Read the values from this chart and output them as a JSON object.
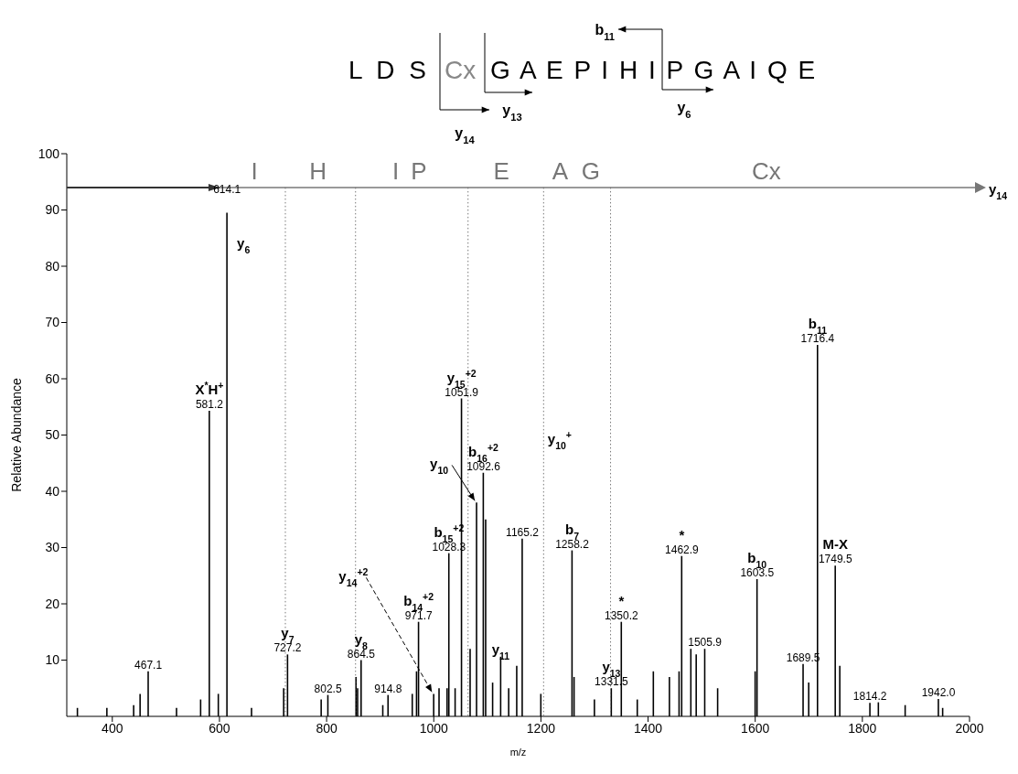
{
  "chart_data": {
    "type": "bar",
    "xlabel": "m/z",
    "ylabel": "Relative Abundance",
    "color": "#000000",
    "x": [
      335,
      390,
      440,
      452,
      467.1,
      520,
      565,
      581.2,
      598,
      614.1,
      660,
      720,
      727.2,
      790,
      802.5,
      855,
      858,
      864.5,
      905,
      914.8,
      960,
      968,
      971.7,
      1000,
      1010,
      1025,
      1028.3,
      1040,
      1051.9,
      1068,
      1080,
      1092.6,
      1097,
      1110,
      1125,
      1140,
      1155,
      1165.2,
      1200,
      1258.2,
      1262,
      1300,
      1331.5,
      1350.2,
      1380,
      1410,
      1440,
      1458,
      1462.9,
      1480,
      1490,
      1505.9,
      1530,
      1600,
      1603.5,
      1689.5,
      1700,
      1716.4,
      1749.5,
      1758,
      1814.2,
      1830,
      1880,
      1942,
      1950
    ],
    "values": [
      1.5,
      1.5,
      2,
      4,
      8,
      1.5,
      3,
      54.3,
      4,
      89.5,
      1.5,
      5,
      11,
      3,
      3.8,
      7,
      5,
      10,
      2,
      3.8,
      4,
      8,
      16.8,
      4,
      5,
      5,
      29,
      5,
      56.5,
      12,
      38,
      43.3,
      35,
      6,
      10.6,
      5,
      9,
      31.6,
      4,
      29.5,
      7,
      3,
      5,
      16.8,
      3,
      8,
      7,
      8,
      28.5,
      12,
      11,
      12,
      5,
      8,
      24.4,
      9.3,
      6,
      66,
      26.8,
      9,
      2.4,
      2.5,
      2,
      3.1,
      1.5
    ],
    "xlim": [
      315,
      2000
    ],
    "xticks": [
      400,
      600,
      800,
      1000,
      1200,
      1400,
      1600,
      1800,
      2000
    ],
    "ylim": [
      0,
      100
    ],
    "yticks": [
      10,
      20,
      30,
      40,
      50,
      60,
      70,
      80,
      90,
      100
    ],
    "grid": false,
    "legend": false,
    "ref_lines": [
      {
        "axis": "y",
        "value": 94,
        "label": "y$_{14}$",
        "color": "#777777"
      },
      {
        "axis": "x",
        "value": 723,
        "color": "#777777",
        "line_style": "dotted"
      },
      {
        "axis": "x",
        "value": 854,
        "color": "#777777",
        "line_style": "dotted"
      },
      {
        "axis": "x",
        "value": 1064,
        "color": "#777777",
        "line_style": "dotted"
      },
      {
        "axis": "x",
        "value": 1205,
        "color": "#777777",
        "line_style": "dotted"
      },
      {
        "axis": "x",
        "value": 1330,
        "color": "#777777",
        "line_style": "dotted"
      }
    ],
    "annotations": [
      "L D S",
      "Cx",
      "G A E P I H I P G A I Q E",
      "b$_{11}$",
      "y$_{14}$",
      "y$_{13}$",
      "y$_{6}$",
      "I",
      "H",
      "I",
      "P",
      "E",
      "A",
      "G",
      "Cx",
      "y$_{10}$$^{+}$",
      {
        "text": "467.1",
        "x": 467.1,
        "y": 8
      },
      {
        "text": "X$^{*}$H$^{+}$",
        "x": 581.2,
        "y": 54.3
      },
      {
        "text": "581.2",
        "x": 581.2,
        "y": 54.3
      },
      {
        "text": "614.1",
        "x": 614.1,
        "y": 89.5
      },
      {
        "text": "y$_{6}$",
        "x": 614.1,
        "y": 89.5
      },
      {
        "text": "y$_{7}$",
        "x": 727.2,
        "y": 11
      },
      {
        "text": "727.2",
        "x": 727.2,
        "y": 11
      },
      {
        "text": "802.5",
        "x": 802.5,
        "y": 3.8
      },
      {
        "text": "y$_{8}$",
        "x": 864.5,
        "y": 10
      },
      {
        "text": "864.5",
        "x": 864.5,
        "y": 10
      },
      {
        "text": "914.8",
        "x": 914.8,
        "y": 3.8
      },
      {
        "text": "y$_{14}$$^{+2}$",
        "x": 1000,
        "y": 4
      },
      {
        "text": "b$_{14}$$^{+2}$",
        "x": 971.7,
        "y": 16.8
      },
      {
        "text": "971.7",
        "x": 971.7,
        "y": 16.8
      },
      {
        "text": "b$_{15}$$^{+2}$",
        "x": 1028.3,
        "y": 29
      },
      {
        "text": "1028.3",
        "x": 1028.3,
        "y": 29
      },
      {
        "text": "y$_{10}$",
        "x": 1080,
        "y": 38
      },
      {
        "text": "y$_{15}$$^{+2}$",
        "x": 1051.9,
        "y": 56.5
      },
      {
        "text": "1051.9",
        "x": 1051.9,
        "y": 56.5
      },
      {
        "text": "b$_{16}$$^{+2}$",
        "x": 1092.6,
        "y": 43.3
      },
      {
        "text": "1092.6",
        "x": 1092.6,
        "y": 43.3
      },
      {
        "text": "y$_{11}$",
        "x": 1125,
        "y": 10.6
      },
      {
        "text": "1165.2",
        "x": 1165.2,
        "y": 31.6
      },
      {
        "text": "b$_{7}$",
        "x": 1258.2,
        "y": 29.5
      },
      {
        "text": "1258.2",
        "x": 1258.2,
        "y": 29.5
      },
      {
        "text": "y$_{13}$",
        "x": 1331.5,
        "y": 5
      },
      {
        "text": "1331.5",
        "x": 1331.5,
        "y": 5
      },
      {
        "text": "*",
        "x": 1350.2,
        "y": 16.8
      },
      {
        "text": "1350.2",
        "x": 1350.2,
        "y": 16.8
      },
      {
        "text": "*",
        "x": 1462.9,
        "y": 28.5
      },
      {
        "text": "1462.9",
        "x": 1462.9,
        "y": 28.5
      },
      {
        "text": "1505.9",
        "x": 1505.9,
        "y": 12
      },
      {
        "text": "b$_{10}$",
        "x": 1603.5,
        "y": 24.4
      },
      {
        "text": "1603.5",
        "x": 1603.5,
        "y": 24.4
      },
      {
        "text": "1689.5",
        "x": 1689.5,
        "y": 9.3
      },
      {
        "text": "b$_{11}$",
        "x": 1716.4,
        "y": 66
      },
      {
        "text": "1716.4",
        "x": 1716.4,
        "y": 66
      },
      {
        "text": "M-X",
        "x": 1749.5,
        "y": 26.8
      },
      {
        "text": "1749.5",
        "x": 1749.5,
        "y": 26.8
      },
      {
        "text": "1814.2",
        "x": 1814.2,
        "y": 2.4
      },
      {
        "text": "1942.0",
        "x": 1942,
        "y": 3.1
      }
    ]
  }
}
